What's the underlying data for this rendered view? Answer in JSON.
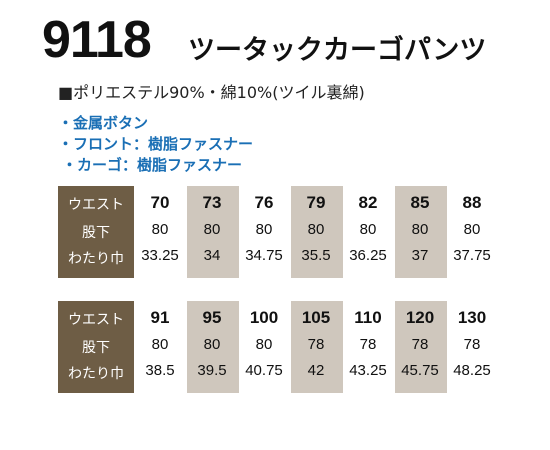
{
  "header": {
    "code": "9118",
    "name": "ツータックカーゴパンツ"
  },
  "material": "■ポリエステル90%・綿10%(ツイル裏綿)",
  "features": [
    "・金属ボタン",
    "・フロント：樹脂ファスナー",
    "・カーゴ：樹脂ファスナー"
  ],
  "tables": [
    {
      "row_labels": [
        "ウエスト",
        "股下",
        "わたり巾"
      ],
      "columns": [
        [
          "70",
          "80",
          "33.25"
        ],
        [
          "73",
          "80",
          "34"
        ],
        [
          "76",
          "80",
          "34.75"
        ],
        [
          "79",
          "80",
          "35.5"
        ],
        [
          "82",
          "80",
          "36.25"
        ],
        [
          "85",
          "80",
          "37"
        ],
        [
          "88",
          "80",
          "37.75"
        ]
      ]
    },
    {
      "row_labels": [
        "ウエスト",
        "股下",
        "わたり巾"
      ],
      "columns": [
        [
          "91",
          "80",
          "38.5"
        ],
        [
          "95",
          "80",
          "39.5"
        ],
        [
          "100",
          "80",
          "40.75"
        ],
        [
          "105",
          "78",
          "42"
        ],
        [
          "110",
          "78",
          "43.25"
        ],
        [
          "120",
          "78",
          "45.75"
        ],
        [
          "130",
          "78",
          "48.25"
        ]
      ]
    }
  ]
}
